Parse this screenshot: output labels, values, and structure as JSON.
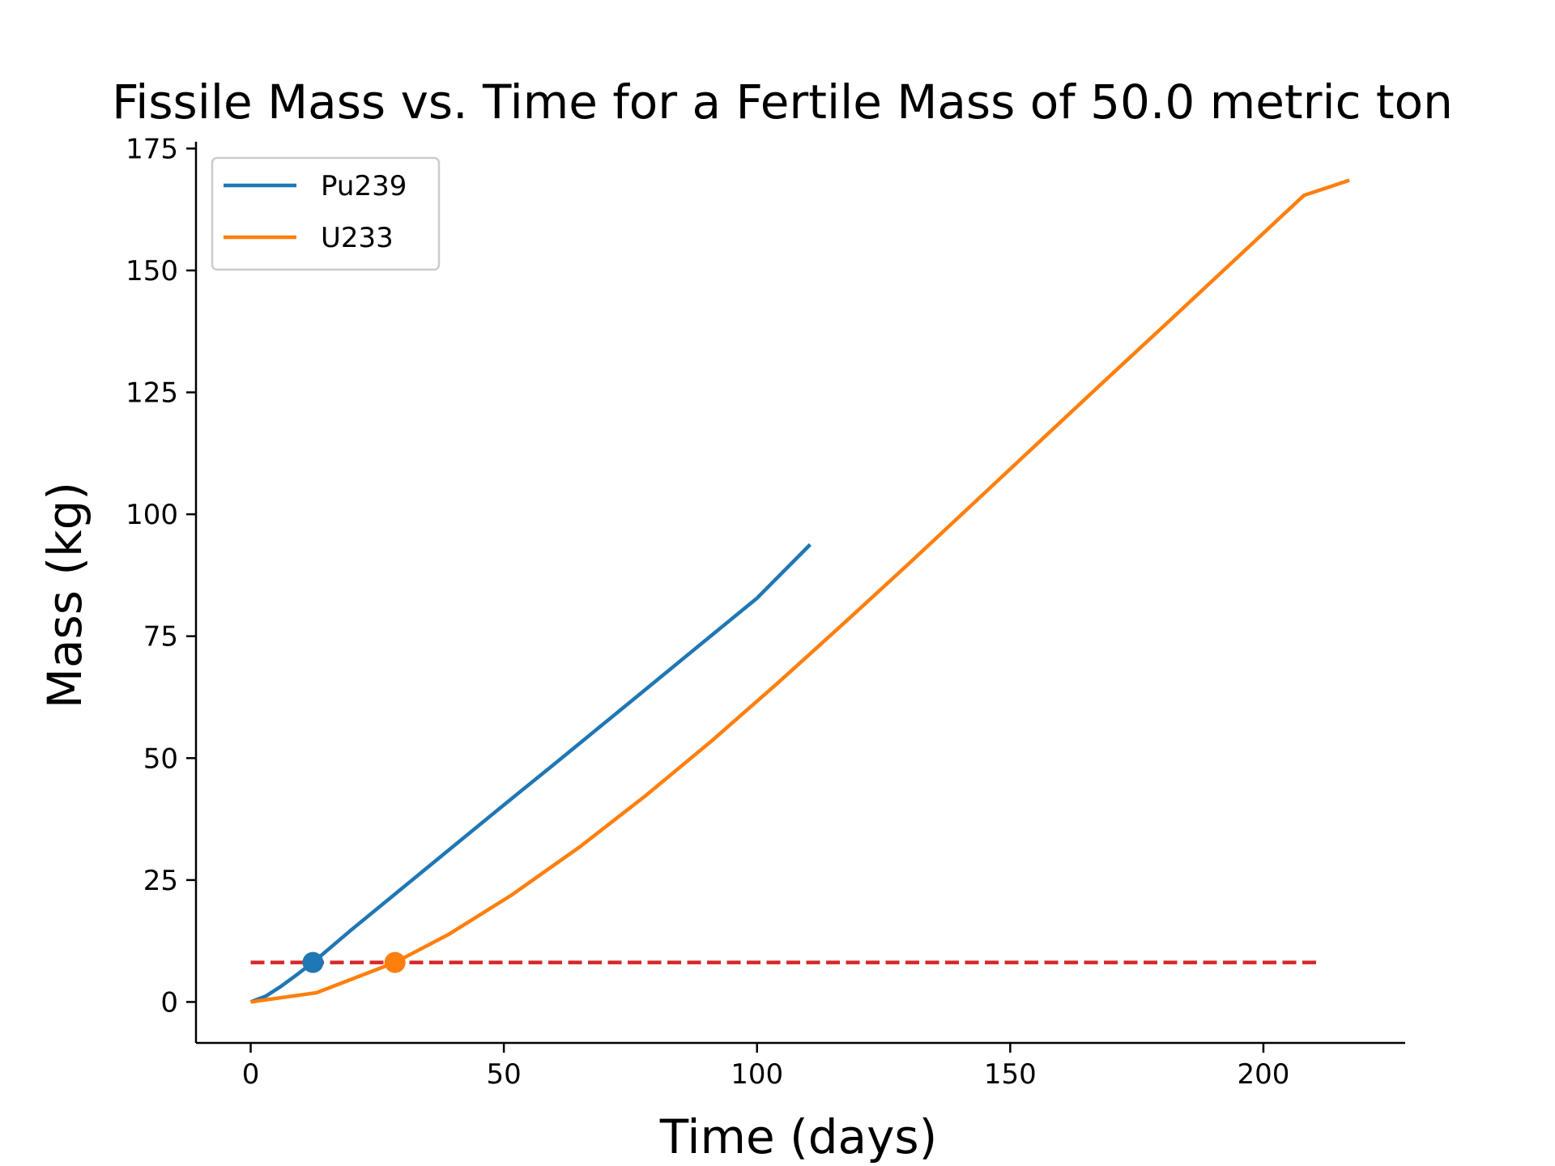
{
  "chart_data": {
    "type": "line",
    "title": "Fissile Mass vs. Time for a Fertile Mass of 50.0 metric ton",
    "xlabel": "Time (days)",
    "ylabel": "Mass (kg)",
    "xlim": [
      -10.8,
      228
    ],
    "ylim": [
      -8.4,
      176.4
    ],
    "xticks": [
      0,
      50,
      100,
      150,
      200
    ],
    "yticks": [
      0,
      25,
      50,
      75,
      100,
      125,
      150,
      175
    ],
    "grid": false,
    "legend_position": "top-left",
    "series": [
      {
        "name": "Pu239",
        "color": "#1f77b4",
        "x": [
          0,
          3,
          6,
          9,
          12.3,
          20,
          30,
          40,
          50,
          60,
          70,
          80,
          90,
          100,
          110.5
        ],
        "y": [
          0,
          1.2,
          3.2,
          5.5,
          8.1,
          14.9,
          23.4,
          31.9,
          40.4,
          48.8,
          57.3,
          65.8,
          74.3,
          82.8,
          93.8
        ]
      },
      {
        "name": "U233",
        "color": "#ff7f0e",
        "x": [
          0,
          13,
          28.5,
          39,
          51.5,
          65,
          78,
          91,
          104,
          117,
          130,
          143,
          156,
          169,
          182,
          195,
          208,
          217
        ],
        "y": [
          0,
          1.9,
          8.1,
          13.8,
          21.9,
          31.8,
          42.3,
          53.5,
          65.3,
          77.5,
          89.9,
          102.5,
          115.1,
          127.7,
          140.2,
          152.8,
          165.4,
          168.5
        ]
      }
    ],
    "threshold": {
      "y": 8.1,
      "x": [
        0,
        211
      ],
      "color": "#d62728",
      "style": "dashed"
    },
    "markers": [
      {
        "series": "Pu239",
        "x": 12.3,
        "y": 8.1,
        "color": "#1f77b4"
      },
      {
        "series": "U233",
        "x": 28.5,
        "y": 8.1,
        "color": "#ff7f0e"
      }
    ]
  }
}
